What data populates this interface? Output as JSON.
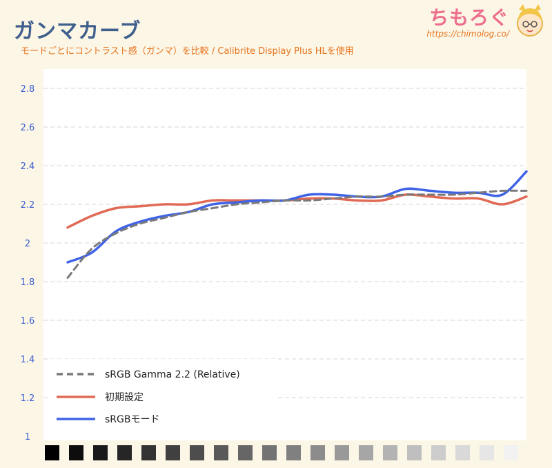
{
  "header": {
    "title": "ガンマカーブ",
    "subtitle": "モードごとにコントラスト感（ガンマ）を比較 / Calibrite Display Plus HLを使用",
    "brand_name": "ちもろぐ",
    "brand_url": "https://chimolog.co/"
  },
  "chart_data": {
    "type": "line",
    "title": "ガンマカーブ",
    "subtitle": "モードごとにコントラスト感（ガンマ）を比較 / Calibrite Display Plus HLを使用",
    "xlabel": "",
    "ylabel": "",
    "ylim": [
      1,
      2.9
    ],
    "yticks": [
      1,
      1.2,
      1.4,
      1.6,
      1.8,
      2,
      2.2,
      2.4,
      2.6,
      2.8
    ],
    "ytick_labels": [
      "1",
      "1.2",
      "1.4",
      "1.6",
      "1.8",
      "2",
      "2.2",
      "2.4",
      "2.6",
      "2.8"
    ],
    "grid": true,
    "legend_position": "bottom-left",
    "x": [
      5,
      10,
      15,
      20,
      25,
      30,
      35,
      40,
      45,
      50,
      55,
      60,
      65,
      70,
      75,
      80,
      85,
      90,
      95,
      100
    ],
    "x_axis_grayscale_patches": [
      "#000000",
      "#0d0d0d",
      "#1a1a1a",
      "#262626",
      "#333333",
      "#404040",
      "#4d4d4d",
      "#595959",
      "#666666",
      "#737373",
      "#808080",
      "#8c8c8c",
      "#999999",
      "#a6a6a6",
      "#b3b3b3",
      "#bfbfbf",
      "#cccccc",
      "#d9d9d9",
      "#e6e6e6",
      "#f2f2f2"
    ],
    "series": [
      {
        "name": "sRGB Gamma 2.2 (Relative)",
        "color": "#7a7a7a",
        "style": "dashed",
        "values": [
          1.82,
          1.97,
          2.05,
          2.1,
          2.13,
          2.16,
          2.18,
          2.2,
          2.21,
          2.22,
          2.22,
          2.23,
          2.24,
          2.24,
          2.25,
          2.25,
          2.25,
          2.26,
          2.27,
          2.27
        ]
      },
      {
        "name": "初期設定",
        "color": "#e06a55",
        "style": "solid",
        "values": [
          2.08,
          2.14,
          2.18,
          2.19,
          2.2,
          2.2,
          2.22,
          2.22,
          2.22,
          2.22,
          2.23,
          2.23,
          2.22,
          2.22,
          2.25,
          2.24,
          2.23,
          2.23,
          2.2,
          2.24
        ]
      },
      {
        "name": "sRGBモード",
        "color": "#3f63e6",
        "style": "solid",
        "values": [
          1.9,
          1.95,
          2.06,
          2.11,
          2.14,
          2.16,
          2.2,
          2.21,
          2.22,
          2.22,
          2.25,
          2.25,
          2.24,
          2.24,
          2.28,
          2.27,
          2.26,
          2.26,
          2.25,
          2.37
        ]
      }
    ]
  }
}
